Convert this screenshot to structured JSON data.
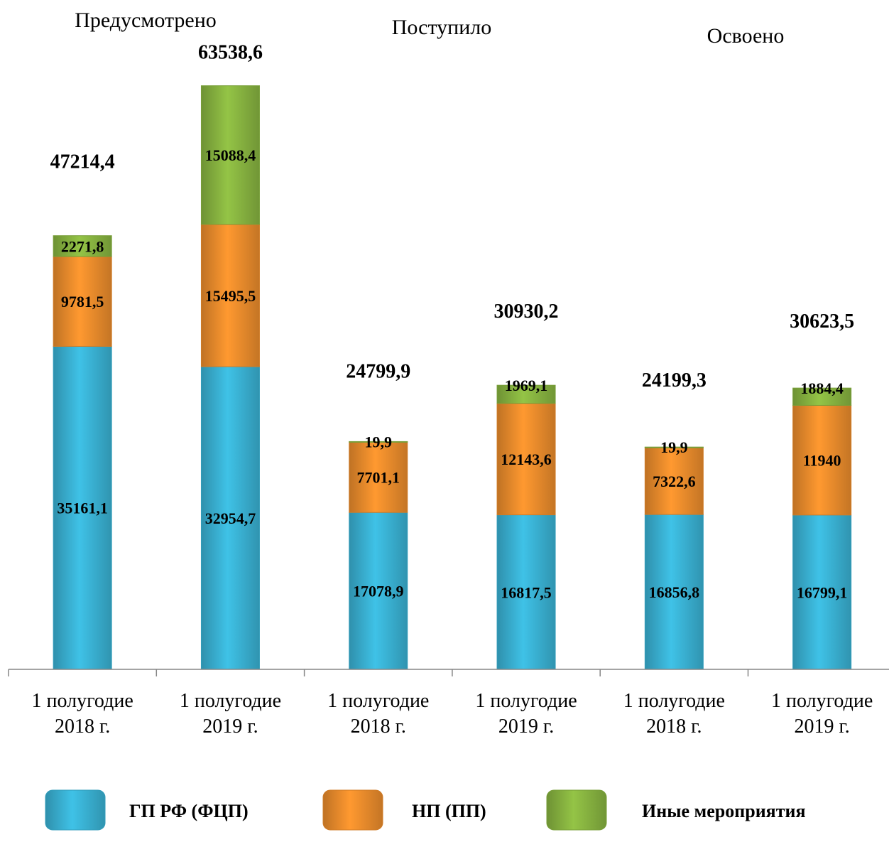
{
  "chart_data": {
    "type": "bar",
    "stacked": true,
    "group_titles": [
      "Предусмотрено",
      "Поступило",
      "Освоено"
    ],
    "categories": [
      [
        "1 полугодие",
        "2018 г."
      ],
      [
        "1 полугодие",
        "2019 г."
      ],
      [
        "1 полугодие",
        "2018 г."
      ],
      [
        "1 полугодие",
        "2019 г."
      ],
      [
        "1 полугодие",
        "2018 г."
      ],
      [
        "1 полугодие",
        "2019 г."
      ]
    ],
    "series": [
      {
        "name": "ГП РФ (ФЦП)",
        "color": "#3cb9dc",
        "values": [
          35161.1,
          32954.7,
          17078.9,
          16817.5,
          16856.8,
          16799.1
        ],
        "labels": [
          "35161,1",
          "32954,7",
          "17078,9",
          "16817,5",
          "16856,8",
          "16799,1"
        ]
      },
      {
        "name": "НП (ПП)",
        "color": "#f5922e",
        "values": [
          9781.5,
          15495.5,
          7701.1,
          12143.6,
          7322.6,
          11940
        ],
        "labels": [
          "9781,5",
          "15495,5",
          "7701,1",
          "12143,6",
          "7322,6",
          "11940"
        ]
      },
      {
        "name": "Иные мероприятия",
        "color": "#8dbb43",
        "values": [
          2271.8,
          15088.4,
          19.9,
          1969.1,
          19.9,
          1884.4
        ],
        "labels": [
          "2271,8",
          "15088,4",
          "19,9",
          "1969,1",
          "19,9",
          "1884,4"
        ]
      }
    ],
    "totals": [
      47214.4,
      63538.6,
      24799.9,
      30930.2,
      24199.3,
      30623.5
    ],
    "total_labels": [
      "47214,4",
      "63538,6",
      "24799,9",
      "30930,2",
      "24199,3",
      "30623,5"
    ],
    "ylim": [
      0,
      66000
    ],
    "grid": false,
    "legend_position": "bottom"
  }
}
